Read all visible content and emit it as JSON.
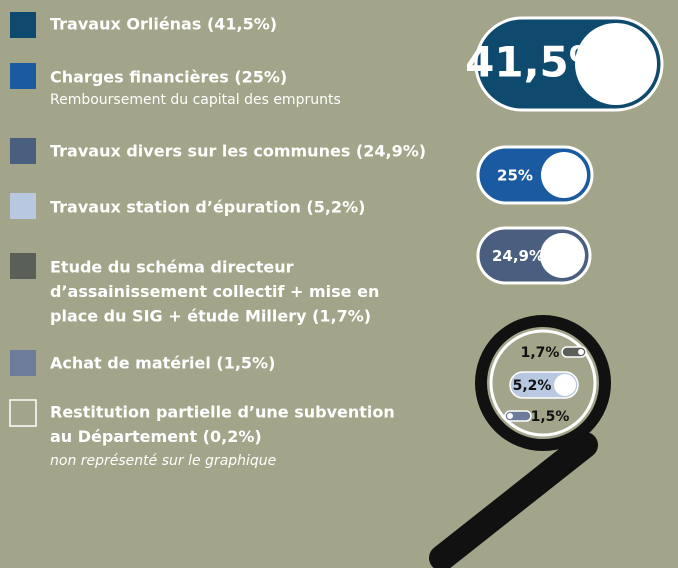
{
  "legend": [
    {
      "label": "Travaux Orliénas (41,5%)",
      "color": "#0d4a6e"
    },
    {
      "label": "Charges financières (25%)",
      "note": "Remboursement du capital des emprunts",
      "color": "#1a5aa0"
    },
    {
      "label": "Travaux divers sur les communes (24,9%)",
      "color": "#4a5f80"
    },
    {
      "label": "Travaux station d’épuration (5,2%)",
      "color": "#b8c8e0"
    },
    {
      "lines": [
        "Etude du schéma directeur",
        "d’assainissement collectif + mise en",
        "place du SIG + étude Millery (1,7%)"
      ],
      "color": "#5a5f58"
    },
    {
      "label": "Achat de matériel (1,5%)",
      "color": "#6c7c9a"
    },
    {
      "lines": [
        "Restitution partielle d’une subvention",
        "au Département (0,2%)"
      ],
      "note": "non représenté sur le graphique",
      "color": "none"
    }
  ],
  "pills": [
    {
      "label": "41,5%",
      "color": "#0d4a6e"
    },
    {
      "label": "25%",
      "color": "#1a5aa0"
    },
    {
      "label": "24,9%",
      "color": "#4a5f80"
    },
    {
      "label": "1,7%",
      "color": "#5a5f58"
    },
    {
      "label": "5,2%",
      "color": "#b8c8e0"
    },
    {
      "label": "1,5%",
      "color": "#6c7c9a"
    }
  ]
}
